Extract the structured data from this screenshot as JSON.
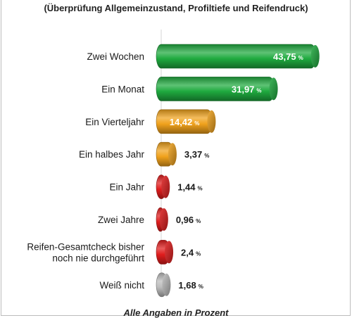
{
  "subtitle": "(Überprüfung Allgemeinzustand, Profiltiefe und Reifendruck)",
  "footnote": "Alle Angaben in Prozent",
  "colors": {
    "green": "#1faa3f",
    "orange": "#f0a21c",
    "red": "#e01d1d",
    "gray": "#bdbdbd"
  },
  "chart_data": {
    "type": "bar",
    "orientation": "horizontal",
    "unit": "%",
    "categories": [
      "Zwei Wochen",
      "Ein Monat",
      "Ein Vierteljahr",
      "Ein halbes Jahr",
      "Ein Jahr",
      "Zwei Jahre",
      "Reifen-Gesamtcheck bisher noch nie durchgeführt",
      "Weiß nicht"
    ],
    "category_lines": [
      [
        "Zwei Wochen"
      ],
      [
        "Ein Monat"
      ],
      [
        "Ein Vierteljahr"
      ],
      [
        "Ein halbes Jahr"
      ],
      [
        "Ein Jahr"
      ],
      [
        "Zwei Jahre"
      ],
      [
        "Reifen-Gesamtcheck bisher",
        "noch nie durchgeführt"
      ],
      [
        "Weiß  nicht"
      ]
    ],
    "values": [
      43.75,
      31.97,
      14.42,
      3.37,
      1.44,
      0.96,
      2.4,
      1.68
    ],
    "value_labels": [
      "43,75",
      "31,97",
      "14,42",
      "3,37",
      "1,44",
      "0,96",
      "2,4",
      "1,68"
    ],
    "bar_colors": [
      "green",
      "green",
      "orange",
      "orange",
      "red",
      "red",
      "red",
      "gray"
    ],
    "label_inside": [
      true,
      true,
      true,
      false,
      false,
      false,
      false,
      false
    ],
    "xlim": [
      0,
      45
    ],
    "grid": false,
    "legend": "none",
    "style": "3d-cylinder"
  }
}
